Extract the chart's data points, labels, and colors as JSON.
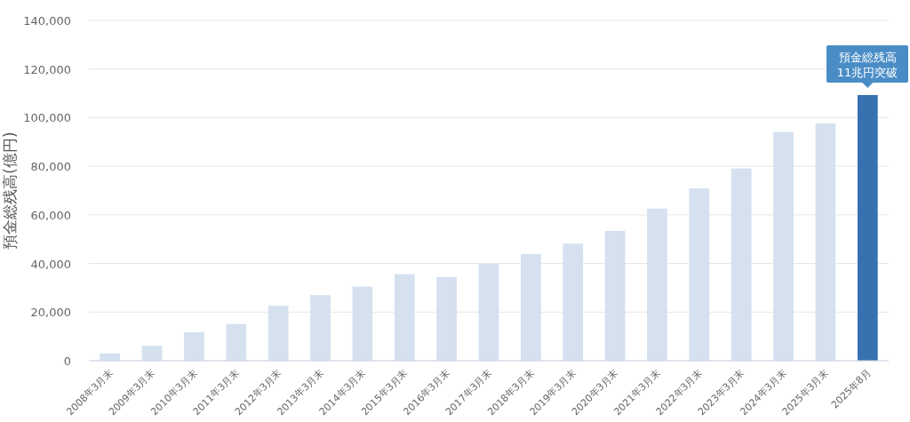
{
  "chart_data": {
    "type": "bar",
    "ylabel": "預金総残高(億円)",
    "categories": [
      "2008年3月末",
      "2009年3月末",
      "2010年3月末",
      "2011年3月末",
      "2012年3月末",
      "2013年3月末",
      "2014年3月末",
      "2015年3月末",
      "2016年3月末",
      "2017年3月末",
      "2018年3月末",
      "2019年3月末",
      "2020年3月末",
      "2021年3月末",
      "2022年3月末",
      "2023年3月末",
      "2024年3月末",
      "2025年3月末",
      "2025年8月"
    ],
    "values": [
      3000,
      6100,
      11700,
      15100,
      22600,
      27000,
      30500,
      35600,
      34400,
      39900,
      43900,
      48200,
      53400,
      62600,
      70900,
      79100,
      94100,
      97600,
      109300
    ],
    "colors": [
      "#d5e1ef",
      "#d5e1ef",
      "#d5e1ef",
      "#d5e1ef",
      "#d5e1ef",
      "#d5e1ef",
      "#d5e1ef",
      "#d5e1ef",
      "#d5e1ef",
      "#d5e1ef",
      "#d5e1ef",
      "#d5e1ef",
      "#d5e1ef",
      "#d5e1ef",
      "#d5e1ef",
      "#d5e1ef",
      "#d5e1ef",
      "#d5e1ef",
      "#3672b0"
    ],
    "ylim": [
      0,
      140000
    ],
    "yticks": [
      {
        "value": 0,
        "label": "0"
      },
      {
        "value": 20000,
        "label": "20,000"
      },
      {
        "value": 40000,
        "label": "40,000"
      },
      {
        "value": 60000,
        "label": "60,000"
      },
      {
        "value": 80000,
        "label": "80,000"
      },
      {
        "value": 100000,
        "label": "100,000"
      },
      {
        "value": 120000,
        "label": "120,000"
      },
      {
        "value": 140000,
        "label": "140,000"
      }
    ],
    "grid": "y",
    "annotations": [
      {
        "text": "預金総残高\n11兆円突破",
        "x": "2025年8月",
        "y": 109300
      }
    ]
  }
}
